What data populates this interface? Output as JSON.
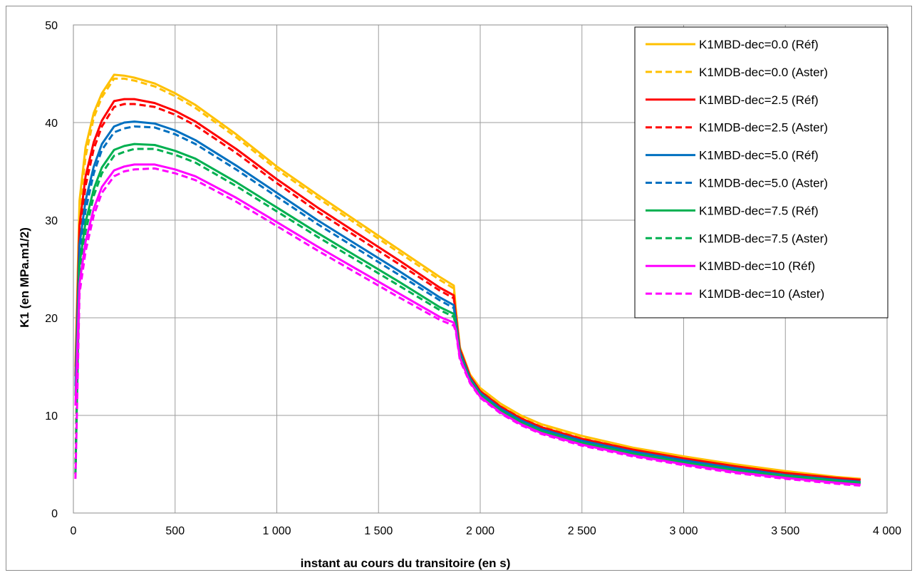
{
  "chart_data": {
    "type": "line",
    "title": "",
    "xlabel": "instant au cours du transitoire (en s)",
    "ylabel": "K1 (en MPa.m1/2)",
    "xlim": [
      0,
      4000
    ],
    "ylim": [
      0,
      50
    ],
    "x_ticks": [
      0,
      500,
      1000,
      1500,
      2000,
      2500,
      3000,
      3500,
      4000
    ],
    "x_tick_labels": [
      "0",
      "500",
      "1 000",
      "1 500",
      "2 000",
      "2 500",
      "3 000",
      "3 500",
      "4 000"
    ],
    "y_ticks": [
      0,
      10,
      20,
      30,
      40,
      50
    ],
    "y_tick_labels": [
      "0",
      "10",
      "20",
      "30",
      "40",
      "50"
    ],
    "grid": true,
    "legend_position": "top-right",
    "series": [
      {
        "name": "K1MBD-dec=0.0 (Réf)",
        "color": "#FFC000",
        "dash": "solid",
        "x": [
          10,
          30,
          60,
          100,
          140,
          200,
          250,
          300,
          400,
          500,
          600,
          800,
          1000,
          1200,
          1400,
          1600,
          1800,
          1870,
          1880,
          1900,
          1950,
          2000,
          2100,
          2200,
          2300,
          2500,
          2750,
          3000,
          3250,
          3500,
          3750,
          3870
        ],
        "y": [
          15,
          32,
          37.5,
          41,
          43,
          44.9,
          44.8,
          44.6,
          44.0,
          43.0,
          41.8,
          38.8,
          35.5,
          32.6,
          29.8,
          27.0,
          24.2,
          23.3,
          21.0,
          17.0,
          14.2,
          12.8,
          11.2,
          10.0,
          9.1,
          7.9,
          6.7,
          5.8,
          5.0,
          4.3,
          3.7,
          3.5
        ]
      },
      {
        "name": "K1MDB-dec=0.0 (Aster)",
        "color": "#FFC000",
        "dash": "dashed",
        "x": [
          10,
          30,
          60,
          100,
          140,
          200,
          250,
          300,
          400,
          500,
          600,
          800,
          1000,
          1200,
          1400,
          1600,
          1800,
          1870,
          1880,
          1900,
          1950,
          2000,
          2100,
          2200,
          2300,
          2500,
          2750,
          3000,
          3250,
          3500,
          3750,
          3870
        ],
        "y": [
          4,
          31,
          36.5,
          40.5,
          42.6,
          44.5,
          44.5,
          44.3,
          43.7,
          42.7,
          41.5,
          38.5,
          35.2,
          32.3,
          29.5,
          26.7,
          23.9,
          23.0,
          20.8,
          16.9,
          14.1,
          12.7,
          11.1,
          9.9,
          9.0,
          7.8,
          6.6,
          5.7,
          4.9,
          4.2,
          3.6,
          3.4
        ]
      },
      {
        "name": "K1MBD-dec=2.5 (Réf)",
        "color": "#FF0000",
        "dash": "solid",
        "x": [
          10,
          30,
          60,
          100,
          140,
          200,
          250,
          300,
          400,
          500,
          600,
          800,
          1000,
          1200,
          1400,
          1600,
          1800,
          1870,
          1880,
          1900,
          1950,
          2000,
          2100,
          2200,
          2300,
          2500,
          2750,
          3000,
          3250,
          3500,
          3750,
          3870
        ],
        "y": [
          14,
          29.5,
          34.5,
          38,
          40.2,
          42.2,
          42.4,
          42.4,
          42.0,
          41.2,
          40.1,
          37.3,
          34.2,
          31.3,
          28.6,
          25.9,
          23.1,
          22.3,
          20.3,
          16.8,
          14.0,
          12.5,
          10.9,
          9.7,
          8.8,
          7.6,
          6.5,
          5.6,
          4.8,
          4.1,
          3.6,
          3.4
        ]
      },
      {
        "name": "K1MDB-dec=2.5 (Aster)",
        "color": "#FF0000",
        "dash": "dashed",
        "x": [
          10,
          30,
          60,
          100,
          140,
          200,
          250,
          300,
          400,
          500,
          600,
          800,
          1000,
          1200,
          1400,
          1600,
          1800,
          1870,
          1880,
          1900,
          1950,
          2000,
          2100,
          2200,
          2300,
          2500,
          2750,
          3000,
          3250,
          3500,
          3750,
          3870
        ],
        "y": [
          4,
          28.5,
          33.5,
          37.3,
          39.6,
          41.6,
          41.9,
          41.9,
          41.6,
          40.8,
          39.7,
          36.9,
          33.8,
          30.9,
          28.2,
          25.5,
          22.8,
          22.0,
          20.1,
          16.6,
          13.9,
          12.4,
          10.8,
          9.6,
          8.7,
          7.5,
          6.4,
          5.5,
          4.7,
          4.0,
          3.5,
          3.3
        ]
      },
      {
        "name": "K1MBD-dec=5.0 (Réf)",
        "color": "#0070C0",
        "dash": "solid",
        "x": [
          10,
          30,
          60,
          100,
          140,
          200,
          250,
          300,
          400,
          500,
          600,
          800,
          1000,
          1200,
          1400,
          1600,
          1800,
          1870,
          1880,
          1900,
          1950,
          2000,
          2100,
          2200,
          2300,
          2500,
          2750,
          3000,
          3250,
          3500,
          3750,
          3870
        ],
        "y": [
          13,
          27.5,
          32,
          35.5,
          37.8,
          39.6,
          40.0,
          40.1,
          39.9,
          39.2,
          38.2,
          35.6,
          32.8,
          30.0,
          27.4,
          24.8,
          22.1,
          21.3,
          19.8,
          16.5,
          13.8,
          12.3,
          10.7,
          9.5,
          8.6,
          7.4,
          6.3,
          5.4,
          4.6,
          3.9,
          3.4,
          3.2
        ]
      },
      {
        "name": "K1MDB-dec=5.0 (Aster)",
        "color": "#0070C0",
        "dash": "dashed",
        "x": [
          10,
          30,
          60,
          100,
          140,
          200,
          250,
          300,
          400,
          500,
          600,
          800,
          1000,
          1200,
          1400,
          1600,
          1800,
          1870,
          1880,
          1900,
          1950,
          2000,
          2100,
          2200,
          2300,
          2500,
          2750,
          3000,
          3250,
          3500,
          3750,
          3870
        ],
        "y": [
          4,
          26.5,
          31,
          34.8,
          37.2,
          39.0,
          39.4,
          39.6,
          39.5,
          38.8,
          37.8,
          35.2,
          32.4,
          29.6,
          27.0,
          24.4,
          21.8,
          21.0,
          19.6,
          16.3,
          13.7,
          12.2,
          10.6,
          9.4,
          8.5,
          7.3,
          6.2,
          5.3,
          4.5,
          3.8,
          3.3,
          3.1
        ]
      },
      {
        "name": "K1MBD-dec=7.5 (Réf)",
        "color": "#00B050",
        "dash": "solid",
        "x": [
          10,
          30,
          60,
          100,
          140,
          200,
          250,
          300,
          400,
          500,
          600,
          800,
          1000,
          1200,
          1400,
          1600,
          1800,
          1870,
          1880,
          1900,
          1950,
          2000,
          2100,
          2200,
          2300,
          2500,
          2750,
          3000,
          3250,
          3500,
          3750,
          3870
        ],
        "y": [
          12,
          25.5,
          29.8,
          33.2,
          35.4,
          37.2,
          37.6,
          37.8,
          37.7,
          37.1,
          36.3,
          33.9,
          31.3,
          28.7,
          26.2,
          23.7,
          21.1,
          20.4,
          19.3,
          16.2,
          13.6,
          12.1,
          10.5,
          9.3,
          8.4,
          7.2,
          6.1,
          5.2,
          4.4,
          3.8,
          3.3,
          3.1
        ]
      },
      {
        "name": "K1MDB-dec=7.5 (Aster)",
        "color": "#00B050",
        "dash": "dashed",
        "x": [
          10,
          30,
          60,
          100,
          140,
          200,
          250,
          300,
          400,
          500,
          600,
          800,
          1000,
          1200,
          1400,
          1600,
          1800,
          1870,
          1880,
          1900,
          1950,
          2000,
          2100,
          2200,
          2300,
          2500,
          2750,
          3000,
          3250,
          3500,
          3750,
          3870
        ],
        "y": [
          4,
          24.5,
          28.8,
          32.5,
          34.8,
          36.6,
          37.0,
          37.3,
          37.3,
          36.7,
          35.9,
          33.5,
          30.9,
          28.3,
          25.8,
          23.3,
          20.8,
          20.1,
          19.1,
          16.0,
          13.5,
          12.0,
          10.4,
          9.2,
          8.3,
          7.1,
          6.0,
          5.1,
          4.3,
          3.7,
          3.2,
          3.0
        ]
      },
      {
        "name": "K1MBD-dec=10 (Réf)",
        "color": "#FF00FF",
        "dash": "solid",
        "x": [
          10,
          30,
          60,
          100,
          140,
          200,
          250,
          300,
          400,
          500,
          600,
          800,
          1000,
          1200,
          1400,
          1600,
          1800,
          1870,
          1880,
          1900,
          1950,
          2000,
          2100,
          2200,
          2300,
          2500,
          2750,
          3000,
          3250,
          3500,
          3750,
          3870
        ],
        "y": [
          11,
          23.5,
          27.8,
          31.2,
          33.4,
          35.1,
          35.5,
          35.7,
          35.7,
          35.2,
          34.5,
          32.3,
          29.8,
          27.3,
          24.9,
          22.5,
          20.1,
          19.5,
          18.8,
          15.9,
          13.4,
          11.9,
          10.3,
          9.1,
          8.2,
          7.0,
          5.9,
          5.0,
          4.2,
          3.6,
          3.1,
          2.9
        ]
      },
      {
        "name": "K1MDB-dec=10 (Aster)",
        "color": "#FF00FF",
        "dash": "dashed",
        "x": [
          10,
          30,
          60,
          100,
          140,
          200,
          250,
          300,
          400,
          500,
          600,
          800,
          1000,
          1200,
          1400,
          1600,
          1800,
          1870,
          1880,
          1900,
          1950,
          2000,
          2100,
          2200,
          2300,
          2500,
          2750,
          3000,
          3250,
          3500,
          3750,
          3870
        ],
        "y": [
          3.5,
          22.5,
          26.8,
          30.5,
          32.8,
          34.5,
          35.0,
          35.2,
          35.3,
          34.8,
          34.1,
          31.9,
          29.4,
          26.9,
          24.5,
          22.1,
          19.8,
          19.2,
          18.6,
          15.7,
          13.3,
          11.8,
          10.2,
          9.0,
          8.1,
          6.9,
          5.8,
          4.9,
          4.1,
          3.5,
          3.0,
          2.8
        ]
      }
    ]
  }
}
